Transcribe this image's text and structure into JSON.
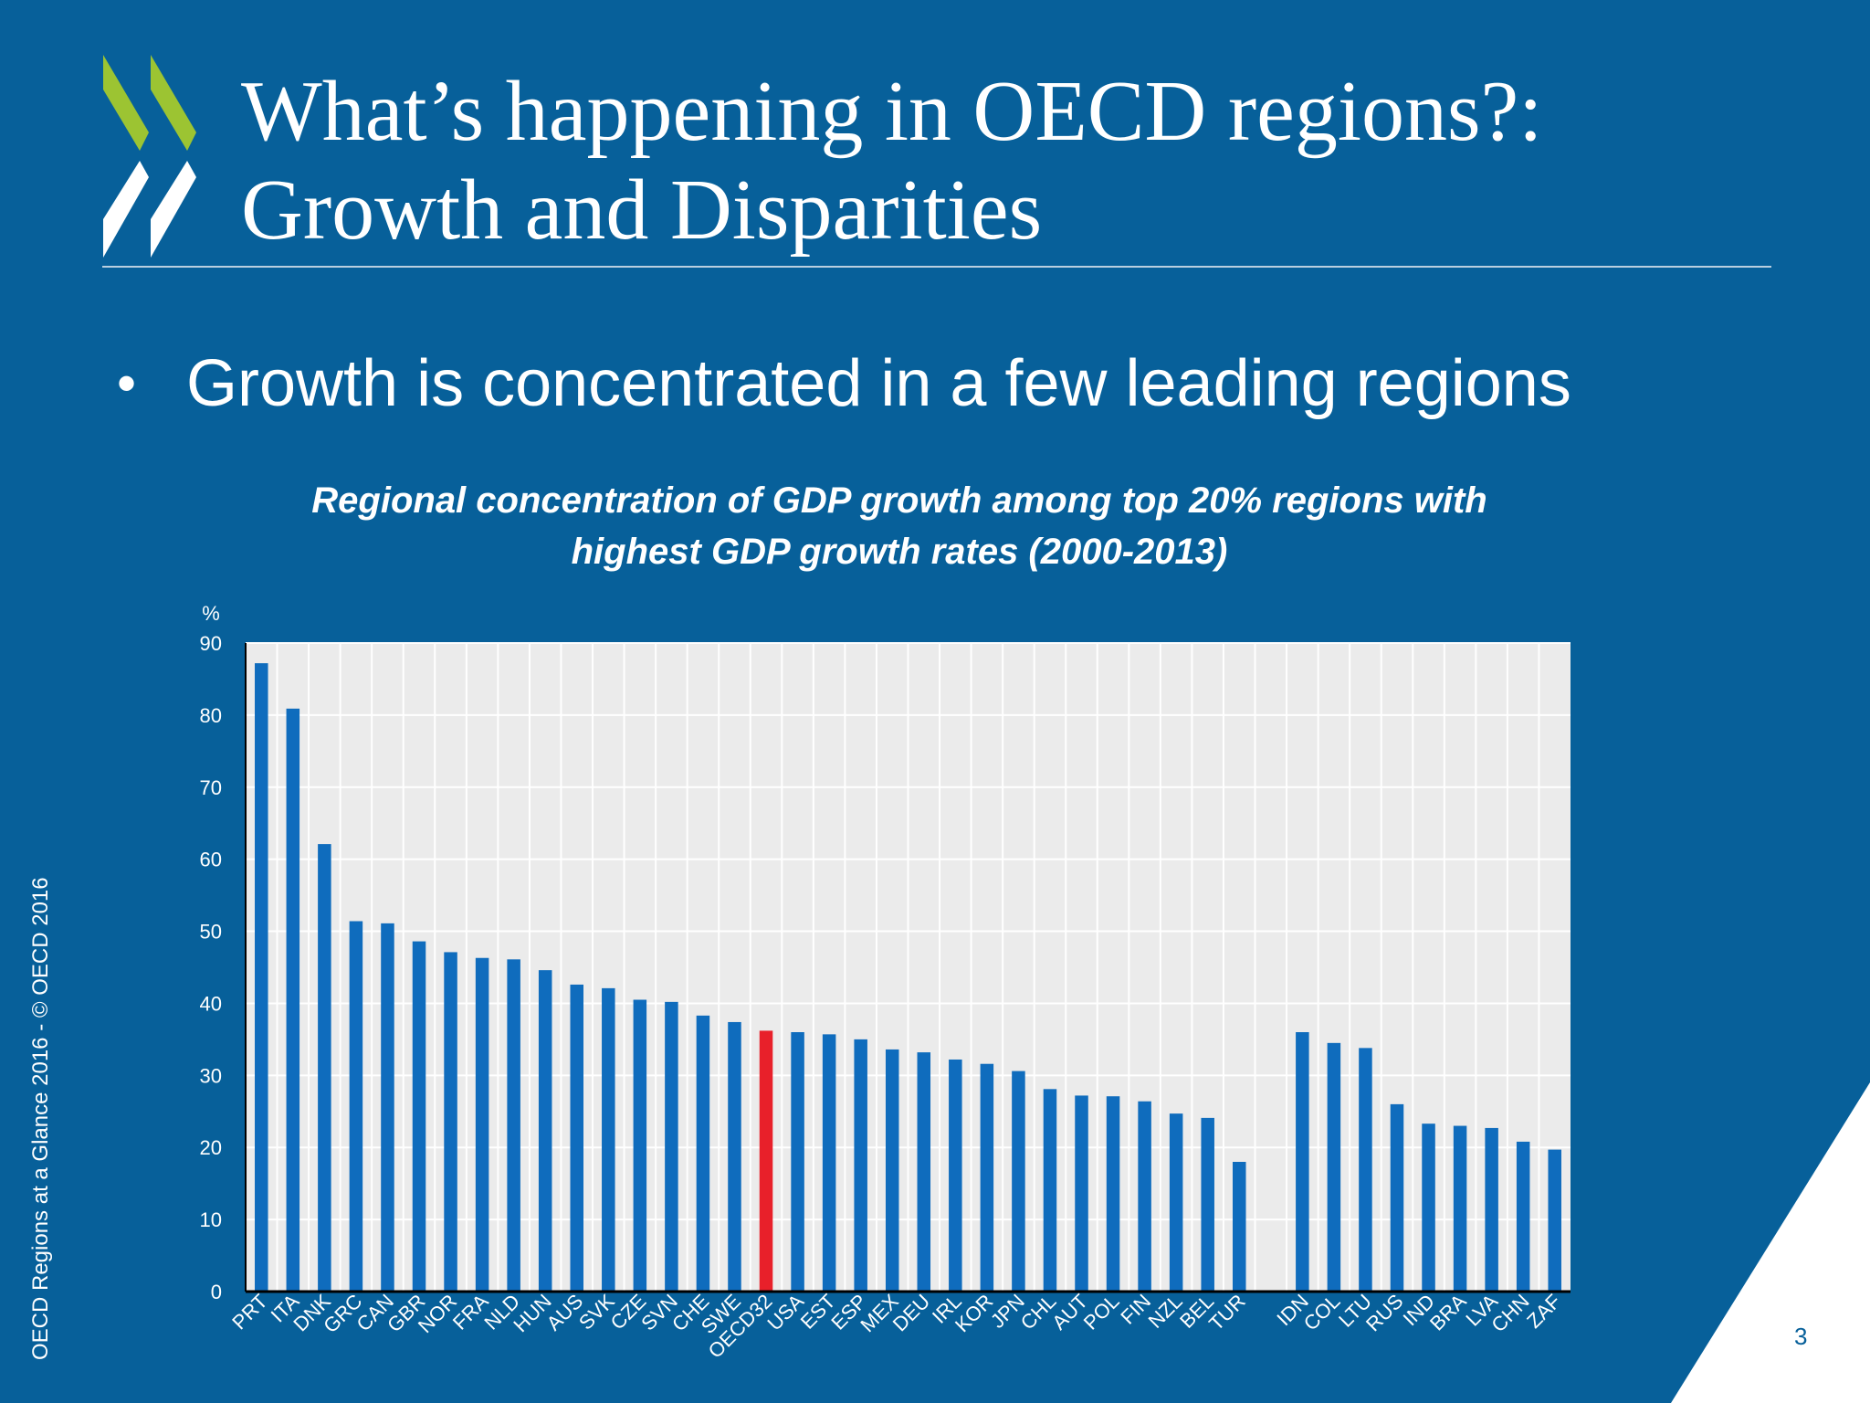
{
  "slide": {
    "title_line1": "What’s happening in OECD regions?:",
    "title_line2": "Growth and Disparities",
    "bullet": "Growth is concentrated in a few leading regions",
    "side_credit": "OECD Regions at a Glance 2016 - © OECD 2016",
    "page_number": "3",
    "colors": {
      "background": "#07609a",
      "logo_green": "#9cc432",
      "white": "#ffffff"
    }
  },
  "chart_data": {
    "type": "bar",
    "title_line1": "Regional concentration of GDP growth among top 20% regions with",
    "title_line2": "highest GDP growth rates (2000-2013)",
    "ylabel": "%",
    "ylim": [
      0,
      90
    ],
    "yticks": [
      0,
      10,
      20,
      30,
      40,
      50,
      60,
      70,
      80,
      90
    ],
    "grid": true,
    "categories": [
      "PRT",
      "ITA",
      "DNK",
      "GRC",
      "CAN",
      "GBR",
      "NOR",
      "FRA",
      "NLD",
      "HUN",
      "AUS",
      "SVK",
      "CZE",
      "SVN",
      "CHE",
      "SWE",
      "OECD32",
      "USA",
      "EST",
      "ESP",
      "MEX",
      "DEU",
      "IRL",
      "KOR",
      "JPN",
      "CHL",
      "AUT",
      "POL",
      "FIN",
      "NZL",
      "BEL",
      "TUR",
      "",
      "IDN",
      "COL",
      "LTU",
      "RUS",
      "IND",
      "BRA",
      "LVA",
      "CHN",
      "ZAF"
    ],
    "values": [
      87.2,
      80.9,
      62.1,
      51.4,
      51.1,
      48.6,
      47.1,
      46.3,
      46.1,
      44.6,
      42.6,
      42.1,
      40.5,
      40.2,
      38.3,
      37.4,
      36.2,
      36.0,
      35.7,
      35.0,
      33.6,
      33.2,
      32.2,
      31.6,
      30.6,
      28.1,
      27.2,
      27.1,
      26.4,
      24.7,
      24.1,
      18.0,
      null,
      36.0,
      34.5,
      33.8,
      26.0,
      23.3,
      23.0,
      22.7,
      20.8,
      19.7
    ],
    "highlight": "OECD32",
    "colors": {
      "bar": "#0f6cbd",
      "highlight": "#e8202a",
      "plot_bg": "#ebebeb",
      "grid": "#ffffff",
      "axis": "#000000"
    }
  }
}
